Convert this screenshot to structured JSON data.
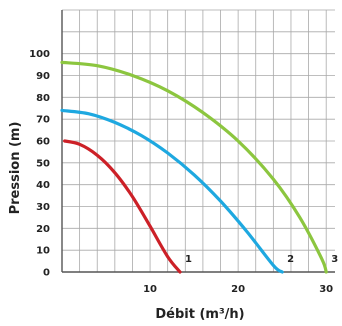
{
  "chart_data": {
    "type": "line",
    "xlabel": "Débit (m³/h)",
    "ylabel": "Pression (m)",
    "xlim": [
      0,
      31
    ],
    "ylim": [
      0,
      120
    ],
    "x_ticks": [
      {
        "value": 10,
        "label": "10"
      },
      {
        "value": 20,
        "label": "20"
      },
      {
        "value": 30,
        "label": "30"
      }
    ],
    "y_ticks": [
      {
        "value": 0,
        "label": "0"
      },
      {
        "value": 10,
        "label": "10"
      },
      {
        "value": 20,
        "label": "20"
      },
      {
        "value": 30,
        "label": "30"
      },
      {
        "value": 40,
        "label": "40"
      },
      {
        "value": 50,
        "label": "50"
      },
      {
        "value": 60,
        "label": "60"
      },
      {
        "value": 70,
        "label": "70"
      },
      {
        "value": 80,
        "label": "80"
      },
      {
        "value": 90,
        "label": "90"
      },
      {
        "value": 100,
        "label": "100"
      }
    ],
    "grid": true,
    "series": [
      {
        "label": "1",
        "color": "#cc2027",
        "x": [
          0.3,
          2,
          4,
          6,
          8,
          10,
          12,
          13.4
        ],
        "y": [
          60,
          58.5,
          53.5,
          45.5,
          34.5,
          21,
          7,
          0
        ]
      },
      {
        "label": "2",
        "color": "#1ea8e0",
        "x": [
          0,
          3,
          6,
          9,
          12,
          15,
          18,
          21,
          24,
          25
        ],
        "y": [
          74,
          72.5,
          68.5,
          62.5,
          54.5,
          44.5,
          32.5,
          18.5,
          3,
          0
        ]
      },
      {
        "label": "3",
        "color": "#8cc63f",
        "x": [
          0,
          4,
          8,
          12,
          16,
          20,
          24,
          27,
          29.5,
          30
        ],
        "y": [
          96,
          94.5,
          90,
          83,
          73,
          60,
          42.5,
          25,
          6,
          0
        ]
      }
    ]
  }
}
